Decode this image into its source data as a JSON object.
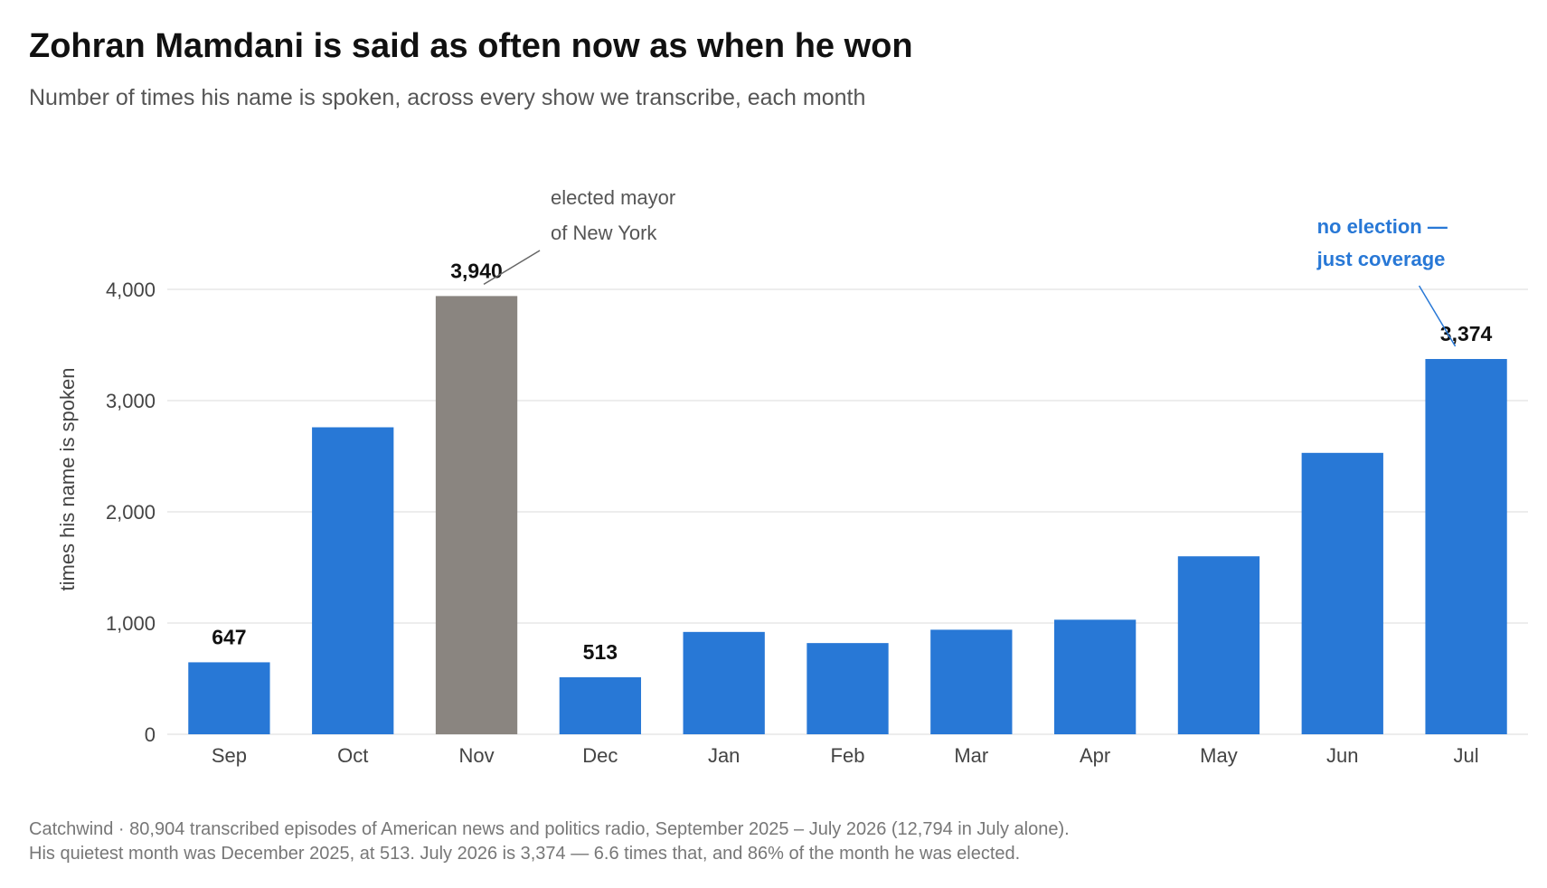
{
  "title": "Zohran Mamdani is said as often now as when he won",
  "subtitle": "Number of times his name is spoken, across every show we transcribe, each month",
  "footer": {
    "line1": "Catchwind · 80,904 transcribed episodes of American news and politics radio, September 2025 – July 2026 (12,794 in July alone).",
    "line2": "His quietest month was December 2025, at 513. July 2026 is 3,374 — 6.6 times that, and 86% of the month he was elected."
  },
  "colors": {
    "bar": "#2878d6",
    "highlight": "#8a8580",
    "grid": "#e2e2e2",
    "annotation_blue": "#2878d6"
  },
  "chart_data": {
    "type": "bar",
    "ylabel": "times his name is spoken",
    "ylim": [
      0,
      4000
    ],
    "yticks": [
      0,
      1000,
      2000,
      3000,
      4000
    ],
    "ytick_labels": [
      "0",
      "1,000",
      "2,000",
      "3,000",
      "4,000"
    ],
    "grid": true,
    "categories": [
      "Sep",
      "Oct",
      "Nov",
      "Dec",
      "Jan",
      "Feb",
      "Mar",
      "Apr",
      "May",
      "Jun",
      "Jul"
    ],
    "values": [
      647,
      2760,
      3940,
      513,
      920,
      820,
      940,
      1030,
      1600,
      2530,
      3374
    ],
    "highlight_index": 2,
    "data_labels": [
      {
        "index": 0,
        "text": "647"
      },
      {
        "index": 2,
        "text": "3,940"
      },
      {
        "index": 3,
        "text": "513"
      },
      {
        "index": 10,
        "text": "3,374"
      }
    ],
    "annotations": [
      {
        "index": 2,
        "lines": [
          "elected mayor",
          "of New York"
        ],
        "style": "grey"
      },
      {
        "index": 10,
        "lines": [
          "no election —",
          "just coverage"
        ],
        "style": "blue"
      }
    ]
  }
}
